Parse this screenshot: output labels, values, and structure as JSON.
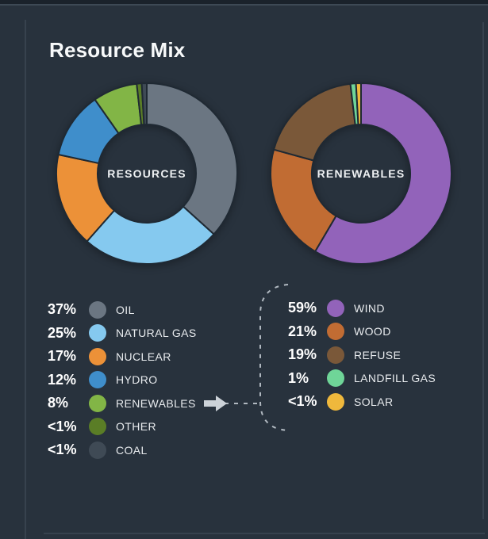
{
  "panel": {
    "title": "Resource Mix"
  },
  "icons": {
    "renewables_link_arrow": "arrow-right"
  },
  "colors": {
    "background": "#28323d",
    "slice_gap": "#1f2933",
    "dashed_connector": "#b0b8c0",
    "arrow": "#ccd2d8"
  },
  "chart_data": [
    {
      "type": "pie",
      "subtype": "donut",
      "center_label": "RESOURCES",
      "legend_position": "below",
      "segments": [
        {
          "label": "OIL",
          "pct": "37%",
          "value": 37,
          "color": "#6b7682"
        },
        {
          "label": "NATURAL GAS",
          "pct": "25%",
          "value": 25,
          "color": "#85c9ef"
        },
        {
          "label": "NUCLEAR",
          "pct": "17%",
          "value": 17,
          "color": "#ec9138"
        },
        {
          "label": "HYDRO",
          "pct": "12%",
          "value": 12,
          "color": "#3f8ecb"
        },
        {
          "label": "RENEWABLES",
          "pct": "8%",
          "value": 8,
          "color": "#82b546",
          "has_arrow": true
        },
        {
          "label": "OTHER",
          "pct": "<1%",
          "value": 0.5,
          "color": "#5a7d26"
        },
        {
          "label": "COAL",
          "pct": "<1%",
          "value": 0.5,
          "color": "#3f4a55"
        }
      ]
    },
    {
      "type": "pie",
      "subtype": "donut",
      "center_label": "RENEWABLES",
      "legend_position": "below",
      "segments": [
        {
          "label": "WIND",
          "pct": "59%",
          "value": 59,
          "color": "#9263ba"
        },
        {
          "label": "WOOD",
          "pct": "21%",
          "value": 21,
          "color": "#c16c33"
        },
        {
          "label": "REFUSE",
          "pct": "19%",
          "value": 19,
          "color": "#7a5839"
        },
        {
          "label": "LANDFILL GAS",
          "pct": "1%",
          "value": 1,
          "color": "#6fd598"
        },
        {
          "label": "SOLAR",
          "pct": "<1%",
          "value": 0.5,
          "color": "#efb83c"
        }
      ]
    }
  ]
}
